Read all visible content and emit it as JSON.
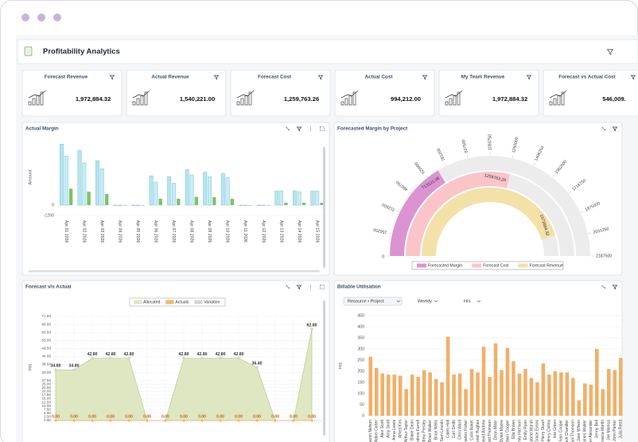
{
  "app": {
    "title": "Profitability Analytics"
  },
  "kpis": [
    {
      "label": "Forecast Revenue",
      "value": "1,972,884.32"
    },
    {
      "label": "Actual Revenue",
      "value": "1,540,221.00"
    },
    {
      "label": "Forecast Cost",
      "value": "1,259,763.26"
    },
    {
      "label": "Actual Cost",
      "value": "994,212.00"
    },
    {
      "label": "My Team Revenue",
      "value": "1,972,884.32"
    },
    {
      "label": "Forecast vs Actual Cost",
      "value": "546,009."
    }
  ],
  "charts": [
    {
      "type": "bar",
      "title": "Actual Margin",
      "y_label": "Amount",
      "categories": [
        "Apr 01 2026",
        "Apr 02 2026",
        "Apr 03 2026",
        "Apr 04 2026",
        "Apr 05 2026",
        "Apr 06 2026",
        "Apr 07 2026",
        "Apr 08 2026",
        "Apr 09 2026",
        "Apr 10 2026",
        "Apr 11 2026",
        "Apr 12 2026",
        "Apr 13 2026",
        "Apr 14 2026",
        "Apr 15 2026"
      ],
      "series": [
        {
          "color": "#b7e4f0",
          "values": [
            7400,
            6650,
            5400,
            0,
            0,
            3550,
            3450,
            4300,
            4000,
            3850,
            0,
            0,
            1730,
            1730,
            1730
          ]
        },
        {
          "color": "#c9ecf5",
          "values": [
            5950,
            5100,
            4420,
            0,
            0,
            2800,
            2650,
            3650,
            3450,
            3350,
            0,
            0,
            1730,
            1630,
            1730
          ]
        },
        {
          "color": "#7cc36b",
          "values": [
            2000,
            1630,
            1350,
            0,
            0,
            770,
            770,
            1000,
            960,
            770,
            0,
            0,
            290,
            290,
            290
          ]
        }
      ],
      "ylim": [
        -1250,
        8000
      ],
      "yticks": [
        -1250,
        0
      ]
    },
    {
      "type": "radial_bar",
      "title": "Forecasted Margin by Project",
      "series": [
        {
          "name": "Forecasted Margin",
          "color": "#dc93d2",
          "value": 713121.06
        },
        {
          "name": "Forecast Cost",
          "color": "#fbc4c8",
          "value": 1259763.26
        },
        {
          "name": "Forecast Revenue",
          "color": "#f4e1a8",
          "value": 1972884.32
        }
      ],
      "xlim": [
        0,
        2187500
      ],
      "xticks": [
        0,
        156250,
        312500,
        468750,
        625000,
        781250,
        937500,
        1093750,
        1250000,
        1406250,
        1562500,
        1718750,
        1875000,
        2031250,
        2187500
      ]
    },
    {
      "type": "area",
      "title": "Forecast v/s Actual",
      "y_label": "Hrs",
      "categories": [
        null,
        null,
        null,
        null,
        null,
        null,
        null,
        null,
        null,
        null,
        null,
        null,
        null,
        null,
        null
      ],
      "series": [
        {
          "name": "Allocated",
          "color": "#dfe7c2",
          "values": [
            34.8,
            34.8,
            42.8,
            42.8,
            42.8,
            0,
            0,
            42.8,
            42.8,
            42.8,
            42.8,
            36.4,
            0,
            0,
            62.8
          ],
          "value_labels": [
            "34.80",
            "34.80",
            "42.80",
            "42.80",
            "42.80",
            null,
            null,
            "42.80",
            "42.80",
            "42.80",
            "42.80",
            "36.40",
            null,
            null,
            "62.80"
          ]
        },
        {
          "name": "Actuals",
          "color": "#f3b46c",
          "values": [
            0,
            0,
            0,
            0,
            0,
            0,
            0,
            0,
            0,
            0,
            0,
            0,
            0,
            0,
            0
          ],
          "value_labels": [
            "0.00",
            "0.00",
            "0.00",
            "0.00",
            "0.00",
            "0.00",
            "0.00",
            "0.00",
            "0.00",
            "0.00",
            "0.00",
            "0.00",
            "0.00",
            "0.00",
            "0.00"
          ]
        },
        {
          "name": "Variation",
          "color": "#d4d4d4",
          "values": [
            34.8,
            34.8,
            42.8,
            42.8,
            42.8,
            0,
            0,
            42.8,
            42.8,
            42.8,
            42.8,
            36.4,
            0,
            0,
            62.8
          ]
        }
      ],
      "ylim": [
        0,
        71.5
      ],
      "yticks": [
        {
          "value": 0,
          "label": "0.00"
        },
        {
          "value": 2.5,
          "label": "2.50"
        },
        {
          "value": 5,
          "label": "5.00"
        },
        {
          "value": 7.5,
          "label": "7.50"
        },
        {
          "value": 10,
          "label": "10.00"
        },
        {
          "value": 12.5,
          "label": "12.50"
        },
        {
          "value": 15,
          "label": "15.00"
        },
        {
          "value": 17.5,
          "label": "17.50"
        },
        {
          "value": 20,
          "label": "20.00"
        },
        {
          "value": 22.5,
          "label": "22.50"
        },
        {
          "value": 25,
          "label": "25.00"
        },
        {
          "value": 27.5,
          "label": "27.50"
        },
        {
          "value": 33,
          "label": "33.00"
        },
        {
          "value": 38.5,
          "label": "38.50"
        },
        {
          "value": 44,
          "label": "44.00"
        },
        {
          "value": 49.5,
          "label": "49.50"
        },
        {
          "value": 55,
          "label": "55.00"
        },
        {
          "value": 60.5,
          "label": "60.50"
        },
        {
          "value": 66,
          "label": "66.00"
        },
        {
          "value": 71.5,
          "label": "71.50"
        }
      ]
    },
    {
      "type": "bar",
      "title": "Billable Utilisation",
      "controls": [
        "Resource • Project",
        "Weekly",
        "Hrs"
      ],
      "y_label": "Hrs",
      "categories": [
        "Aaron Nelson",
        "Adam Carter",
        "Alex Scott",
        "Amy Scott",
        "Anna Lewis",
        "Alfred Kim",
        "Arthur Taylor",
        "Blake Dean",
        "Andrew Farrell",
        "Andrew Presley",
        "Brian Walker",
        "Brian Wells",
        "Sam Lincoln",
        "Caleb Hall",
        "Carl Smith",
        "Chris Ward",
        "Charles Fisher",
        "Colin Baker",
        "Daniel Hughes",
        "David Andrew",
        "David Thomson",
        "Dean Miller",
        "Dylan Moore",
        "Edwin Cooper",
        "Ella Brown",
        "Emily Harrison",
        "Emily Ryan",
        "Gabriel Marsh",
        "Grace Evans",
        "Harry Stuart",
        "Henry Collins",
        "Isla Green",
        "Ivan Cooper",
        "Jack Chandler",
        "Jack Thomson",
        "Jake Wilson",
        "James Walker",
        "Jennifer Alexander",
        "Jenny Bell",
        "Jessica Martin",
        "Joe Markus",
        "John Parker",
        "Julia Reed"
      ],
      "values": [
        265,
        215,
        190,
        185,
        185,
        180,
        120,
        185,
        175,
        205,
        195,
        165,
        150,
        355,
        185,
        190,
        120,
        210,
        195,
        310,
        175,
        325,
        205,
        305,
        245,
        190,
        210,
        170,
        150,
        235,
        185,
        200,
        195,
        195,
        170,
        70,
        145,
        140,
        300,
        120,
        210,
        205,
        260
      ],
      "color": "#f0b06a",
      "ylim": [
        0,
        450
      ],
      "yticks": [
        0,
        50,
        100,
        150,
        200,
        250,
        300,
        350,
        400,
        450
      ]
    }
  ]
}
